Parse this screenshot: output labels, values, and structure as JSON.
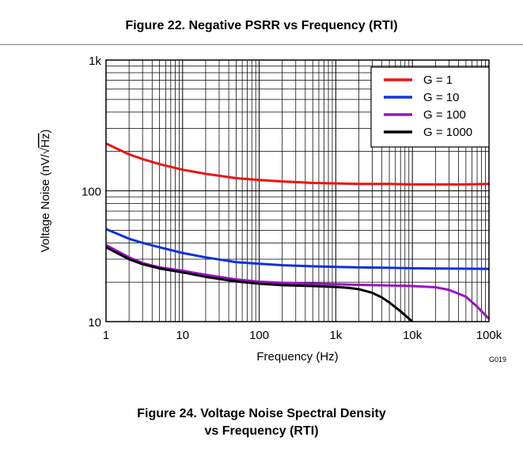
{
  "figure_top": {
    "title": "Figure 22. Negative PSRR vs Frequency (RTI)"
  },
  "figure_bottom": {
    "title_line1": "Figure 24. Voltage Noise Spectral Density",
    "title_line2": "vs Frequency (RTI)"
  },
  "chart_data": {
    "type": "line",
    "xlabel": "Frequency (Hz)",
    "ylabel_pre": "Voltage Noise (nV/",
    "ylabel_rad": "Hz",
    "ylabel_post": ")",
    "xscale": "log",
    "yscale": "log",
    "xlim": [
      1,
      100000
    ],
    "ylim": [
      10,
      1000
    ],
    "x_ticks": [
      1,
      10,
      100,
      1000,
      10000,
      100000
    ],
    "x_tick_labels": [
      "1",
      "10",
      "100",
      "1k",
      "10k",
      "100k"
    ],
    "y_ticks": [
      10,
      100,
      1000
    ],
    "y_tick_labels": [
      "10",
      "100",
      "1k"
    ],
    "grid": true,
    "legend_position": "top-right",
    "code": "G019",
    "series": [
      {
        "name": "G = 1",
        "color": "#ee1111",
        "x": [
          1,
          2,
          3,
          5,
          10,
          20,
          50,
          100,
          200,
          500,
          1000,
          2000,
          5000,
          10000,
          20000,
          50000,
          100000
        ],
        "y": [
          230,
          190,
          175,
          160,
          145,
          135,
          125,
          121,
          118,
          115,
          114,
          113,
          113,
          112,
          112,
          112,
          113
        ]
      },
      {
        "name": "G = 10",
        "color": "#1030dd",
        "x": [
          1,
          2,
          3,
          5,
          10,
          20,
          50,
          100,
          200,
          500,
          1000,
          2000,
          5000,
          10000,
          20000,
          50000,
          100000
        ],
        "y": [
          51,
          43,
          40,
          37,
          33.5,
          31,
          28.5,
          27.7,
          27,
          26.5,
          26.2,
          26,
          25.8,
          25.6,
          25.5,
          25.4,
          25.3
        ]
      },
      {
        "name": "G = 100",
        "color": "#9a10c8",
        "x": [
          1,
          2,
          3,
          5,
          10,
          20,
          50,
          100,
          200,
          500,
          1000,
          2000,
          5000,
          10000,
          20000,
          30000,
          50000,
          70000,
          100000
        ],
        "y": [
          38.5,
          31,
          28,
          26,
          24.5,
          22.8,
          21,
          20.2,
          19.8,
          19.5,
          19.3,
          19.1,
          18.9,
          18.7,
          18.3,
          17.5,
          15.5,
          13,
          10.5
        ]
      },
      {
        "name": "G = 1000",
        "color": "#000000",
        "x": [
          1,
          2,
          3,
          5,
          10,
          20,
          50,
          100,
          200,
          500,
          1000,
          1500,
          2000,
          3000,
          4000,
          5000,
          7000,
          10000
        ],
        "y": [
          37,
          30,
          27.5,
          25.5,
          23.8,
          22,
          20.3,
          19.5,
          19,
          18.7,
          18.4,
          18.1,
          17.7,
          16.6,
          15.3,
          14,
          12,
          10
        ]
      }
    ]
  }
}
